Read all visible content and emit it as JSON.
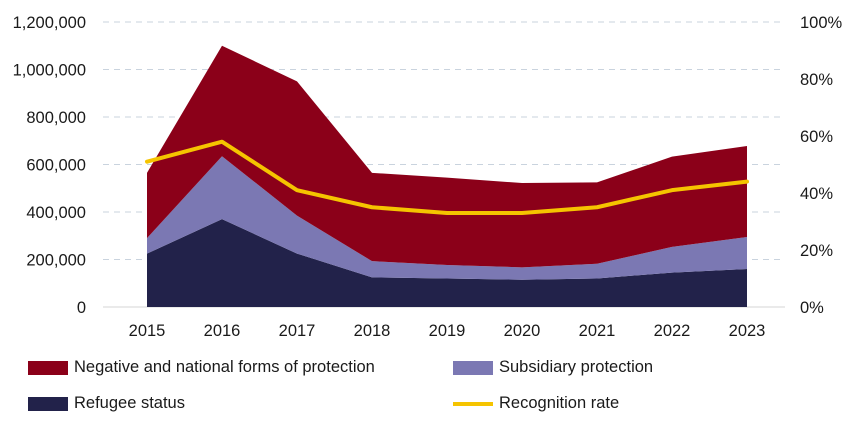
{
  "chart_data": {
    "type": "area",
    "stacked": true,
    "categories": [
      "2015",
      "2016",
      "2017",
      "2018",
      "2019",
      "2020",
      "2021",
      "2022",
      "2023"
    ],
    "series": [
      {
        "name": "Refugee status",
        "values": [
          225000,
          370000,
          225000,
          125000,
          120000,
          115000,
          120000,
          145000,
          160000
        ],
        "color": "#22224a"
      },
      {
        "name": "Subsidiary protection",
        "values": [
          65000,
          265000,
          160000,
          68000,
          57000,
          52000,
          62000,
          108000,
          135000
        ],
        "color": "#7b78b3"
      },
      {
        "name": "Negative and national forms of protection",
        "values": [
          275000,
          465000,
          565000,
          372000,
          368000,
          355000,
          343000,
          380000,
          383000
        ],
        "color": "#8b0019"
      }
    ],
    "line_series": {
      "name": "Recognition rate",
      "values": [
        51,
        58,
        41,
        35,
        33,
        33,
        35,
        41,
        44
      ],
      "axis": "right",
      "color": "#f5c400"
    },
    "left_axis": {
      "min": 0,
      "max": 1200000,
      "ticks": [
        "0",
        "200,000",
        "400,000",
        "600,000",
        "800,000",
        "1,000,000",
        "1,200,000"
      ]
    },
    "right_axis": {
      "min": 0,
      "max": 100,
      "ticks": [
        "0%",
        "20%",
        "40%",
        "60%",
        "80%",
        "100%"
      ]
    },
    "legend": [
      {
        "label": "Negative and national forms of protection",
        "kind": "area",
        "color": "#8b0019"
      },
      {
        "label": "Subsidiary protection",
        "kind": "area",
        "color": "#7b78b3"
      },
      {
        "label": "Refugee status",
        "kind": "area",
        "color": "#22224a"
      },
      {
        "label": "Recognition rate",
        "kind": "line",
        "color": "#f5c400"
      }
    ],
    "grid": true,
    "legend_position": "bottom"
  }
}
